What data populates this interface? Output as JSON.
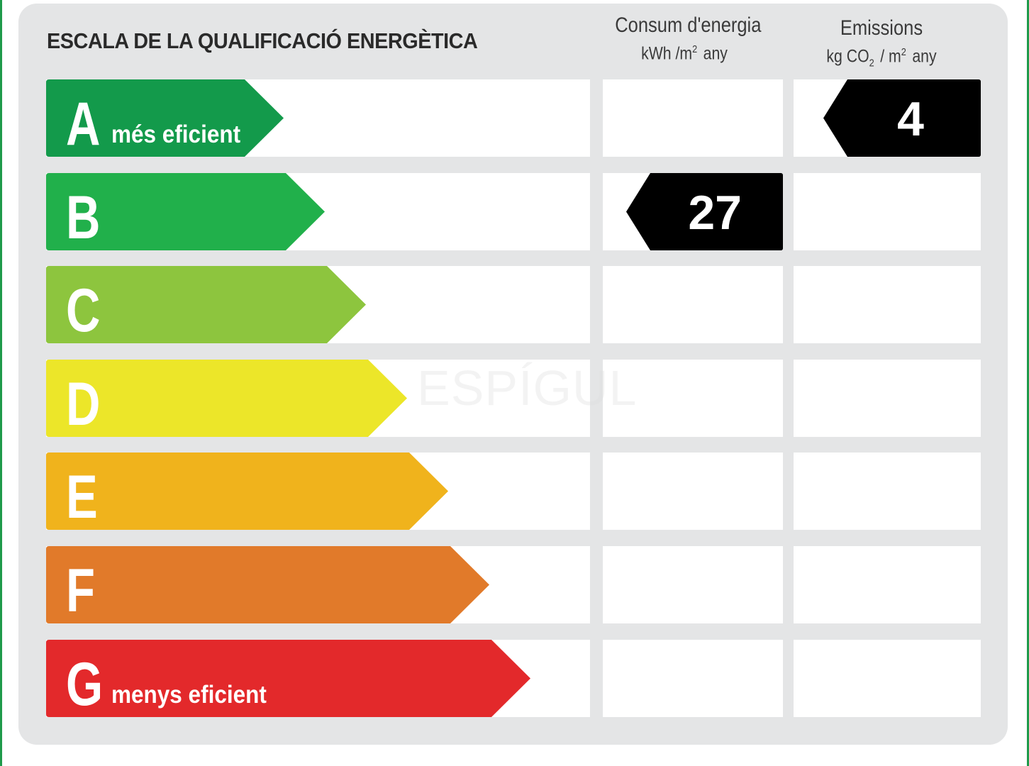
{
  "title": "ESCALA DE LA QUALIFICACIÓ ENERGÈTICA",
  "columns": {
    "consumption": {
      "line1": "Consum d'energia",
      "unit_pre": "kWh /m",
      "unit_sup": "2",
      "unit_post": "any"
    },
    "emissions": {
      "line1": "Emissions",
      "unit_pre": "kg CO",
      "unit_sub": "2",
      "unit_mid": "/ m",
      "unit_sup": "2",
      "unit_post": "any"
    }
  },
  "scale": [
    {
      "letter": "A",
      "sublabel": "més eficient",
      "color": "#139a4b"
    },
    {
      "letter": "B",
      "sublabel": "",
      "color": "#21b04b"
    },
    {
      "letter": "C",
      "sublabel": "",
      "color": "#8dc53e"
    },
    {
      "letter": "D",
      "sublabel": "",
      "color": "#ece629"
    },
    {
      "letter": "E",
      "sublabel": "",
      "color": "#f0b31c"
    },
    {
      "letter": "F",
      "sublabel": "",
      "color": "#e17a2a"
    },
    {
      "letter": "G",
      "sublabel": "menys eficient",
      "color": "#e3292b"
    }
  ],
  "ratings": {
    "consumption": {
      "value": "27",
      "class": "B"
    },
    "emissions": {
      "value": "4",
      "class": "A"
    }
  },
  "watermark": "ESPÍGUL"
}
